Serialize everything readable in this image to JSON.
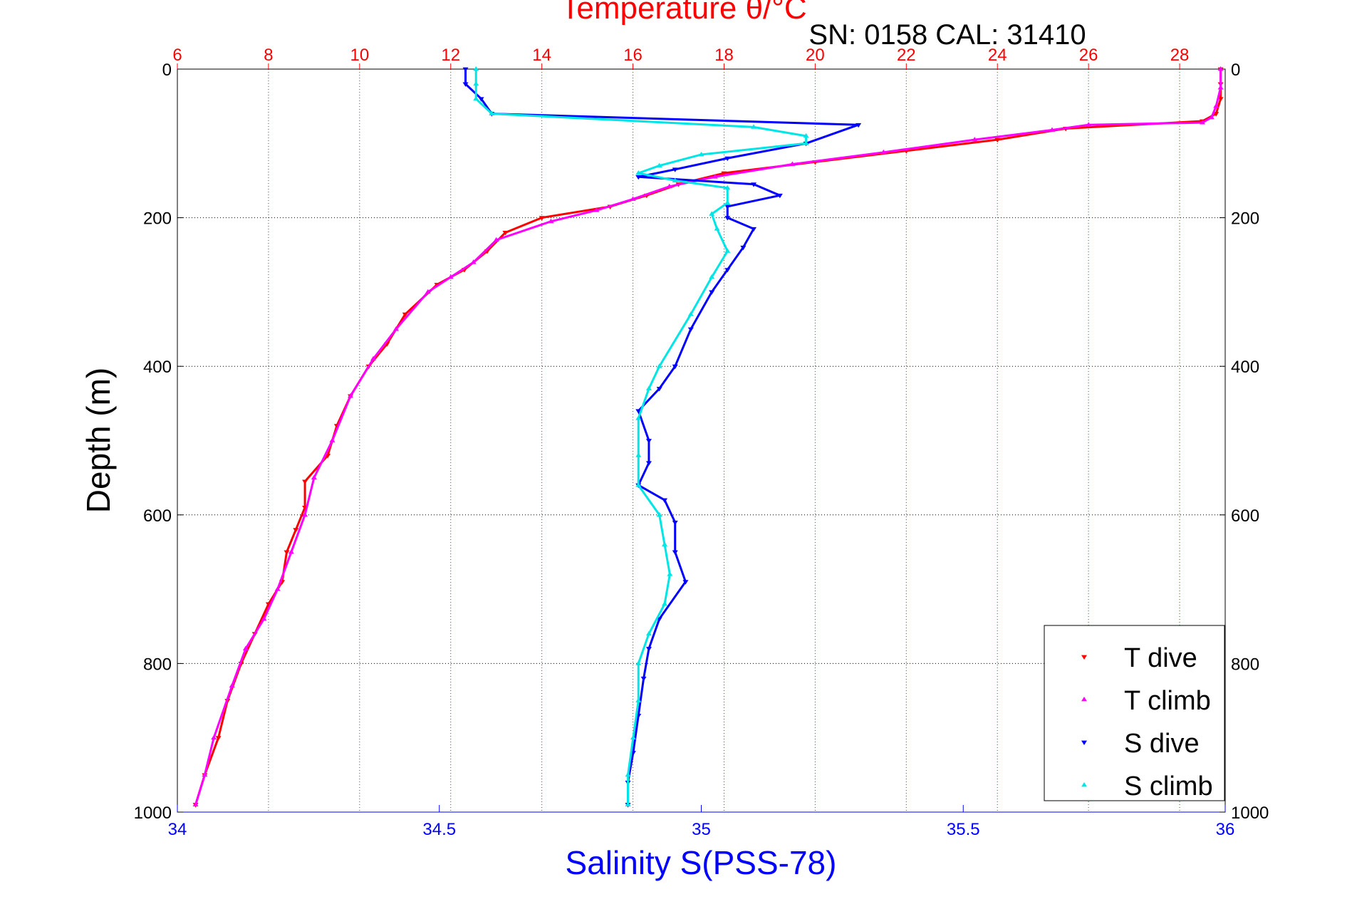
{
  "chart_data": {
    "type": "scatter",
    "title": "Temperature θ/°C",
    "annotation": "SN: 0158  CAL: 31410",
    "ylabel": "Depth (m)",
    "xlabel": "Salinity S(PSS-78)",
    "ylim": [
      0,
      1000
    ],
    "y_reversed": true,
    "y_ticks": [
      "0",
      "200",
      "400",
      "600",
      "800",
      "1000"
    ],
    "x_top_axis": {
      "label": "Temperature θ/°C",
      "range": [
        6,
        29
      ],
      "ticks": [
        "6",
        "8",
        "10",
        "12",
        "14",
        "16",
        "18",
        "20",
        "22",
        "24",
        "26",
        "28"
      ],
      "color": "#ff0000"
    },
    "x_bottom_axis": {
      "label": "Salinity S(PSS-78)",
      "range": [
        34,
        36
      ],
      "ticks": [
        "34",
        "34.5",
        "35",
        "35.5",
        "36"
      ],
      "color": "#0000ff"
    },
    "grid": "dotted",
    "legend_position": "bottom-right",
    "series": [
      {
        "name": "T dive",
        "axis": "temperature",
        "color": "#ff0000",
        "marker": "▾",
        "points": [
          [
            28.9,
            0
          ],
          [
            28.9,
            20
          ],
          [
            28.9,
            40
          ],
          [
            28.8,
            60
          ],
          [
            28.5,
            70
          ],
          [
            25.5,
            80
          ],
          [
            24.0,
            95
          ],
          [
            22.0,
            110
          ],
          [
            20.0,
            125
          ],
          [
            18.0,
            140
          ],
          [
            17.0,
            155
          ],
          [
            16.3,
            170
          ],
          [
            15.5,
            185
          ],
          [
            14.0,
            200
          ],
          [
            13.2,
            220
          ],
          [
            12.8,
            245
          ],
          [
            12.3,
            270
          ],
          [
            11.7,
            290
          ],
          [
            11.0,
            330
          ],
          [
            10.6,
            370
          ],
          [
            10.2,
            400
          ],
          [
            9.8,
            440
          ],
          [
            9.5,
            480
          ],
          [
            9.3,
            520
          ],
          [
            8.8,
            555
          ],
          [
            8.8,
            590
          ],
          [
            8.6,
            620
          ],
          [
            8.4,
            650
          ],
          [
            8.3,
            690
          ],
          [
            8.0,
            720
          ],
          [
            7.7,
            760
          ],
          [
            7.4,
            800
          ],
          [
            7.1,
            850
          ],
          [
            6.9,
            900
          ],
          [
            6.6,
            950
          ],
          [
            6.4,
            990
          ]
        ]
      },
      {
        "name": "T climb",
        "axis": "temperature",
        "color": "#ff00ff",
        "marker": "▴",
        "points": [
          [
            28.9,
            0
          ],
          [
            28.9,
            25
          ],
          [
            28.8,
            50
          ],
          [
            28.7,
            65
          ],
          [
            28.5,
            72
          ],
          [
            26.0,
            75
          ],
          [
            25.2,
            82
          ],
          [
            23.5,
            95
          ],
          [
            21.5,
            112
          ],
          [
            19.5,
            128
          ],
          [
            17.8,
            145
          ],
          [
            16.8,
            158
          ],
          [
            16.0,
            175
          ],
          [
            15.2,
            190
          ],
          [
            14.2,
            205
          ],
          [
            13.0,
            230
          ],
          [
            12.5,
            260
          ],
          [
            12.0,
            280
          ],
          [
            11.5,
            300
          ],
          [
            10.8,
            350
          ],
          [
            10.3,
            390
          ],
          [
            9.8,
            440
          ],
          [
            9.4,
            500
          ],
          [
            9.0,
            550
          ],
          [
            8.8,
            600
          ],
          [
            8.5,
            650
          ],
          [
            8.2,
            700
          ],
          [
            7.9,
            740
          ],
          [
            7.5,
            780
          ],
          [
            7.2,
            830
          ],
          [
            6.8,
            900
          ],
          [
            6.6,
            950
          ],
          [
            6.4,
            990
          ]
        ]
      },
      {
        "name": "S dive",
        "axis": "salinity",
        "color": "#0000ff",
        "marker": "▾",
        "points": [
          [
            34.55,
            0
          ],
          [
            34.55,
            20
          ],
          [
            34.58,
            40
          ],
          [
            34.6,
            60
          ],
          [
            35.3,
            75
          ],
          [
            35.2,
            100
          ],
          [
            35.05,
            120
          ],
          [
            34.95,
            135
          ],
          [
            34.88,
            145
          ],
          [
            35.1,
            155
          ],
          [
            35.15,
            170
          ],
          [
            35.05,
            185
          ],
          [
            35.05,
            200
          ],
          [
            35.1,
            215
          ],
          [
            35.08,
            240
          ],
          [
            35.05,
            270
          ],
          [
            35.02,
            300
          ],
          [
            34.98,
            350
          ],
          [
            34.95,
            400
          ],
          [
            34.92,
            430
          ],
          [
            34.88,
            460
          ],
          [
            34.9,
            500
          ],
          [
            34.9,
            530
          ],
          [
            34.88,
            560
          ],
          [
            34.93,
            580
          ],
          [
            34.95,
            610
          ],
          [
            34.95,
            650
          ],
          [
            34.97,
            690
          ],
          [
            34.92,
            740
          ],
          [
            34.9,
            780
          ],
          [
            34.89,
            820
          ],
          [
            34.88,
            870
          ],
          [
            34.87,
            920
          ],
          [
            34.86,
            960
          ],
          [
            34.86,
            990
          ]
        ]
      },
      {
        "name": "S climb",
        "axis": "salinity",
        "color": "#00e5e5",
        "marker": "▴",
        "points": [
          [
            34.57,
            0
          ],
          [
            34.57,
            20
          ],
          [
            34.57,
            40
          ],
          [
            34.6,
            60
          ],
          [
            35.1,
            78
          ],
          [
            35.2,
            90
          ],
          [
            35.2,
            100
          ],
          [
            35.0,
            115
          ],
          [
            34.92,
            130
          ],
          [
            34.88,
            140
          ],
          [
            34.95,
            150
          ],
          [
            35.05,
            160
          ],
          [
            35.05,
            180
          ],
          [
            35.02,
            195
          ],
          [
            35.03,
            215
          ],
          [
            35.05,
            245
          ],
          [
            35.02,
            280
          ],
          [
            34.98,
            330
          ],
          [
            34.92,
            400
          ],
          [
            34.9,
            430
          ],
          [
            34.88,
            470
          ],
          [
            34.88,
            520
          ],
          [
            34.88,
            560
          ],
          [
            34.92,
            600
          ],
          [
            34.93,
            640
          ],
          [
            34.94,
            680
          ],
          [
            34.93,
            720
          ],
          [
            34.9,
            760
          ],
          [
            34.88,
            800
          ],
          [
            34.88,
            850
          ],
          [
            34.87,
            900
          ],
          [
            34.86,
            950
          ],
          [
            34.86,
            990
          ]
        ]
      }
    ]
  }
}
